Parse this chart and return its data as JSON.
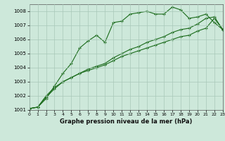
{
  "xlabel": "Graphe pression niveau de la mer (hPa)",
  "background_color": "#cde8da",
  "grid_color": "#a8c8b8",
  "line_color": "#1a6b1a",
  "ylim": [
    1001,
    1008.5
  ],
  "xlim": [
    0,
    23
  ],
  "yticks": [
    1001,
    1002,
    1003,
    1004,
    1005,
    1006,
    1007,
    1008
  ],
  "xticks": [
    0,
    1,
    2,
    3,
    4,
    5,
    6,
    7,
    8,
    9,
    10,
    11,
    12,
    13,
    14,
    15,
    16,
    17,
    18,
    19,
    20,
    21,
    22,
    23
  ],
  "line1_x": [
    0,
    1,
    2,
    3,
    4,
    5,
    6,
    7,
    8,
    9,
    10,
    11,
    12,
    13,
    14,
    15,
    16,
    17,
    18,
    19,
    20,
    21,
    22,
    23
  ],
  "line1_y": [
    1001.1,
    1001.2,
    1001.8,
    1002.7,
    1003.6,
    1004.3,
    1005.4,
    1005.9,
    1006.3,
    1005.8,
    1007.2,
    1007.3,
    1007.8,
    1007.9,
    1008.0,
    1007.8,
    1007.8,
    1008.3,
    1008.1,
    1007.5,
    1007.6,
    1007.8,
    1007.2,
    1006.7
  ],
  "line2_x": [
    0,
    1,
    2,
    3,
    4,
    5,
    6,
    7,
    8,
    9,
    10,
    11,
    12,
    13,
    14,
    15,
    16,
    17,
    18,
    19,
    20,
    21,
    22,
    23
  ],
  "line2_y": [
    1001.1,
    1001.2,
    1002.0,
    1002.6,
    1003.0,
    1003.3,
    1003.6,
    1003.9,
    1004.1,
    1004.3,
    1004.7,
    1005.0,
    1005.3,
    1005.5,
    1005.8,
    1006.0,
    1006.2,
    1006.5,
    1006.7,
    1006.8,
    1007.1,
    1007.5,
    1007.6,
    1006.7
  ],
  "line3_x": [
    0,
    1,
    2,
    3,
    4,
    5,
    6,
    7,
    8,
    9,
    10,
    11,
    12,
    13,
    14,
    15,
    16,
    17,
    18,
    19,
    20,
    21,
    22,
    23
  ],
  "line3_y": [
    1001.1,
    1001.2,
    1001.9,
    1002.5,
    1003.0,
    1003.3,
    1003.6,
    1003.8,
    1004.0,
    1004.2,
    1004.5,
    1004.8,
    1005.0,
    1005.2,
    1005.4,
    1005.6,
    1005.8,
    1006.0,
    1006.2,
    1006.3,
    1006.6,
    1006.8,
    1007.5,
    1006.7
  ]
}
